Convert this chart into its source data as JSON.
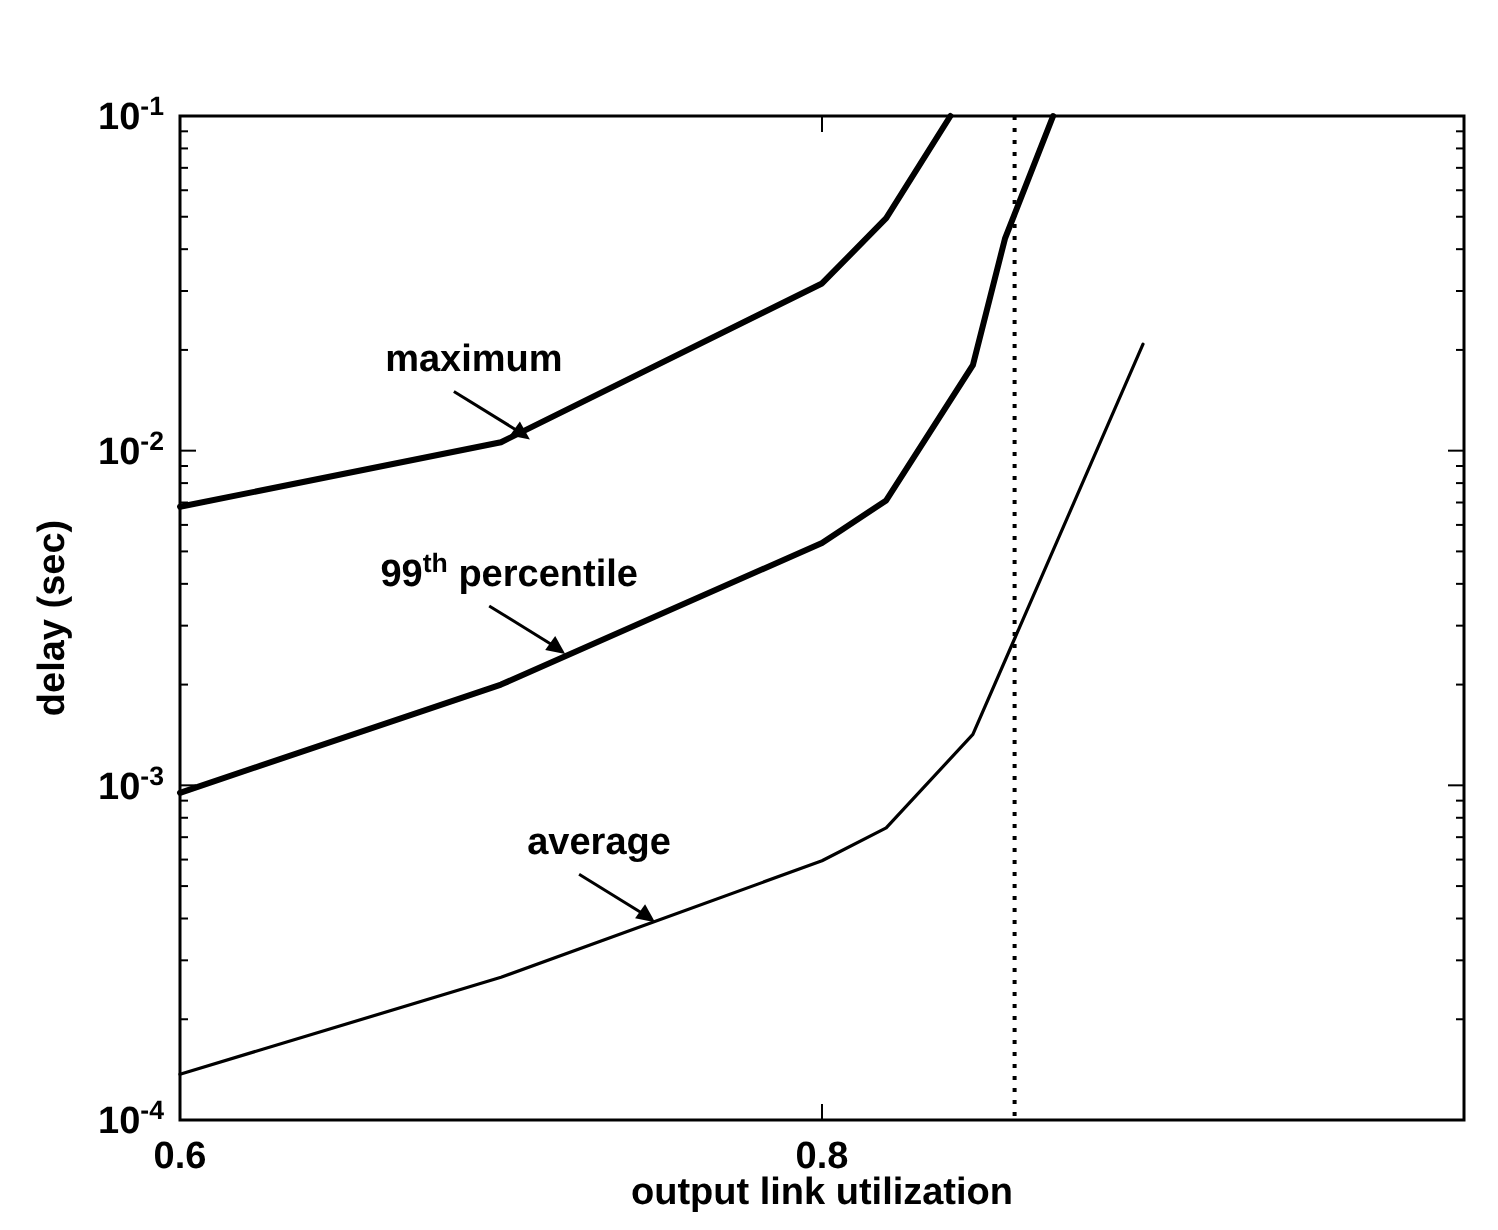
{
  "chart_data": {
    "type": "line",
    "xlabel": "output link utilization",
    "ylabel": "delay (sec)",
    "log": "y",
    "xlim": [
      0.6,
      1.0
    ],
    "xticks": [
      0.6,
      0.8
    ],
    "ylim": [
      0.0001,
      0.1
    ],
    "yticks": [
      {
        "value": 0.0001,
        "label": "10$^{-4}$"
      },
      {
        "value": 0.0002,
        "label": null
      },
      {
        "value": 0.0003,
        "label": null
      },
      {
        "value": 0.0004,
        "label": null
      },
      {
        "value": 0.0005,
        "label": null
      },
      {
        "value": 0.0006,
        "label": null
      },
      {
        "value": 0.0007,
        "label": null
      },
      {
        "value": 0.0008,
        "label": null
      },
      {
        "value": 0.0009,
        "label": null
      },
      {
        "value": 0.001,
        "label": "10$^{-3}$"
      },
      {
        "value": 0.002,
        "label": null
      },
      {
        "value": 0.003,
        "label": null
      },
      {
        "value": 0.004,
        "label": null
      },
      {
        "value": 0.005,
        "label": null
      },
      {
        "value": 0.006,
        "label": null
      },
      {
        "value": 0.007,
        "label": null
      },
      {
        "value": 0.008,
        "label": null
      },
      {
        "value": 0.009,
        "label": null
      },
      {
        "value": 0.01,
        "label": "10$^{-2}$"
      },
      {
        "value": 0.02,
        "label": null
      },
      {
        "value": 0.03,
        "label": null
      },
      {
        "value": 0.04,
        "label": null
      },
      {
        "value": 0.05,
        "label": null
      },
      {
        "value": 0.06,
        "label": null
      },
      {
        "value": 0.07,
        "label": null
      },
      {
        "value": 0.08,
        "label": null
      },
      {
        "value": 0.09,
        "label": null
      },
      {
        "value": 0.1,
        "label": "10$^{-1}$"
      }
    ],
    "grid": false,
    "marker": "none",
    "series": [
      {
        "color": "#000000",
        "x": [
          0.6,
          0.7,
          0.8,
          0.82,
          0.84
        ],
        "values": [
          0.0068,
          0.0106,
          0.0316,
          0.0495,
          0.1
        ]
      },
      {
        "color": "#000000",
        "x": [
          0.6,
          0.7,
          0.8,
          0.82,
          0.847,
          0.857,
          0.872
        ],
        "values": [
          0.00095,
          0.002,
          0.0053,
          0.0071,
          0.018,
          0.043,
          0.1
        ]
      },
      {
        "color": "#000000",
        "x": [
          0.6,
          0.7,
          0.8,
          0.82,
          0.847,
          0.9
        ],
        "values": [
          0.000137,
          0.000267,
          0.000595,
          0.000746,
          0.00142,
          0.0208
        ]
      }
    ],
    "ref_lines": [
      {
        "axis": "x",
        "value": 0.86,
        "line_style": "dotted",
        "color": "#000000"
      }
    ],
    "annotations": [
      {
        "text": "maximum",
        "x": 0.709,
        "y": 0.0108
      },
      {
        "text": "99$^{th}$ percentile",
        "x": 0.72,
        "y": 0.00247
      },
      {
        "text": "average",
        "x": 0.748,
        "y": 0.00039
      }
    ]
  }
}
